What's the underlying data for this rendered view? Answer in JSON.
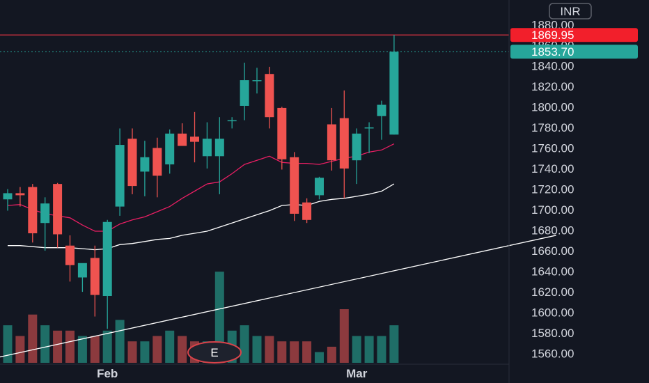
{
  "currency_button": "INR",
  "event_marker": "E",
  "colors": {
    "background": "#131722",
    "up": "#26a69a",
    "down": "#ef5350",
    "up_volume": "#1f6e67",
    "down_volume": "#8c3a3e",
    "ma_short": "#e91e63",
    "ma_long": "#ffffff",
    "trendline": "#ffffff",
    "hline": "#f23645",
    "axis_text": "#d1d4dc"
  },
  "chart_data": {
    "type": "candlestick",
    "title": "",
    "y_range": [
      1553,
      1885
    ],
    "y_ticks": [
      "1560.00",
      "1580.00",
      "1600.00",
      "1620.00",
      "1640.00",
      "1660.00",
      "1680.00",
      "1700.00",
      "1720.00",
      "1740.00",
      "1760.00",
      "1780.00",
      "1800.00",
      "1820.00",
      "1840.00",
      "1860.00",
      "1880.00"
    ],
    "x_labels": [
      {
        "label": "Feb",
        "candle_index": 8
      },
      {
        "label": "Mar",
        "candle_index": 28
      }
    ],
    "candles": [
      {
        "o": 1710,
        "h": 1720,
        "l": 1699,
        "c": 1716
      },
      {
        "o": 1716,
        "h": 1722,
        "l": 1703,
        "c": 1714
      },
      {
        "o": 1722,
        "h": 1725,
        "l": 1668,
        "c": 1677
      },
      {
        "o": 1687,
        "h": 1712,
        "l": 1660,
        "c": 1706
      },
      {
        "o": 1725,
        "h": 1726,
        "l": 1663,
        "c": 1676
      },
      {
        "o": 1665,
        "h": 1675,
        "l": 1630,
        "c": 1646
      },
      {
        "o": 1634,
        "h": 1645,
        "l": 1620,
        "c": 1648
      },
      {
        "o": 1653,
        "h": 1665,
        "l": 1596,
        "c": 1617
      },
      {
        "o": 1616,
        "h": 1690,
        "l": 1584,
        "c": 1688
      },
      {
        "o": 1703,
        "h": 1779,
        "l": 1694,
        "c": 1763
      },
      {
        "o": 1769,
        "h": 1779,
        "l": 1715,
        "c": 1723
      },
      {
        "o": 1737,
        "h": 1767,
        "l": 1713,
        "c": 1751
      },
      {
        "o": 1760,
        "h": 1770,
        "l": 1712,
        "c": 1733
      },
      {
        "o": 1744,
        "h": 1778,
        "l": 1735,
        "c": 1774
      },
      {
        "o": 1774,
        "h": 1784,
        "l": 1762,
        "c": 1762
      },
      {
        "o": 1771,
        "h": 1795,
        "l": 1746,
        "c": 1766
      },
      {
        "o": 1752,
        "h": 1785,
        "l": 1740,
        "c": 1769
      },
      {
        "o": 1752,
        "h": 1790,
        "l": 1715,
        "c": 1769
      },
      {
        "o": 1787,
        "h": 1790,
        "l": 1779,
        "c": 1787
      },
      {
        "o": 1801,
        "h": 1843,
        "l": 1787,
        "c": 1826
      },
      {
        "o": 1826,
        "h": 1838,
        "l": 1813,
        "c": 1826
      },
      {
        "o": 1832,
        "h": 1839,
        "l": 1779,
        "c": 1790
      },
      {
        "o": 1799,
        "h": 1800,
        "l": 1739,
        "c": 1749
      },
      {
        "o": 1751,
        "h": 1756,
        "l": 1689,
        "c": 1696
      },
      {
        "o": 1707,
        "h": 1711,
        "l": 1687,
        "c": 1690
      },
      {
        "o": 1714,
        "h": 1732,
        "l": 1710,
        "c": 1731
      },
      {
        "o": 1783,
        "h": 1799,
        "l": 1738,
        "c": 1748
      },
      {
        "o": 1789,
        "h": 1816,
        "l": 1711,
        "c": 1740
      },
      {
        "o": 1748,
        "h": 1779,
        "l": 1725,
        "c": 1774
      },
      {
        "o": 1780,
        "h": 1785,
        "l": 1755,
        "c": 1780
      },
      {
        "o": 1791,
        "h": 1806,
        "l": 1768,
        "c": 1802
      },
      {
        "o": 1773,
        "h": 1870,
        "l": 1773,
        "c": 1853.7
      }
    ],
    "volume": [
      7,
      5,
      9,
      7,
      6,
      6,
      5,
      5,
      6,
      8,
      4,
      4,
      5,
      6,
      5,
      4,
      4,
      17,
      6,
      7,
      5,
      5,
      4,
      4,
      4,
      2,
      3,
      10,
      5,
      5,
      5,
      7
    ],
    "ma_short": [
      1704,
      1705,
      1700,
      1696,
      1694,
      1692,
      1685,
      1679,
      1679,
      1686,
      1690,
      1693,
      1698,
      1703,
      1711,
      1718,
      1725,
      1727,
      1735,
      1744,
      1748,
      1752,
      1746,
      1745,
      1745,
      1744,
      1747,
      1750,
      1752,
      1756,
      1758,
      1764
    ],
    "ma_long": [
      1665,
      1665,
      1664,
      1663,
      1663,
      1663,
      1662,
      1661,
      1662,
      1666,
      1667,
      1669,
      1671,
      1672,
      1675,
      1677,
      1679,
      1683,
      1687,
      1691,
      1695,
      1699,
      1704,
      1705,
      1704,
      1708,
      1710,
      1711,
      1713,
      1715,
      1718,
      1725
    ],
    "trendline": {
      "x": [
        -2,
        44
      ],
      "y": [
        1553,
        1675
      ]
    },
    "horizontal_line": {
      "value": 1869.95,
      "label": "1869.95"
    },
    "last_price": {
      "value": 1853.7,
      "label": "1853.70"
    }
  }
}
